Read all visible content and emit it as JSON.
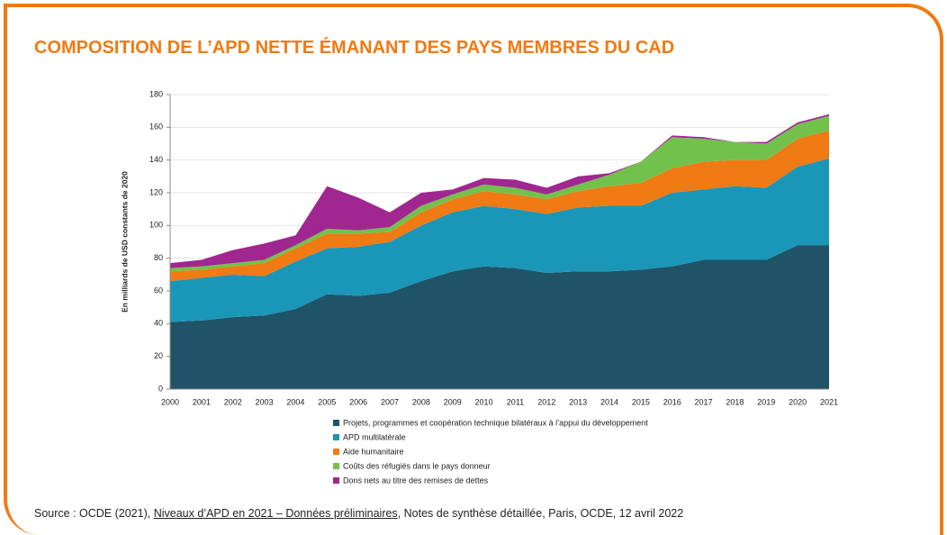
{
  "chart_data": {
    "type": "stacked_area",
    "title": "COMPOSITION DE L’APD NETTE ÉMANANT DES PAYS MEMBRES DU CAD",
    "y_label": "En milliards de USD constants de 2020",
    "categories": [
      "2000",
      "2001",
      "2002",
      "2003",
      "2004",
      "2005",
      "2006",
      "2007",
      "2008",
      "2009",
      "2010",
      "2011",
      "2012",
      "2013",
      "2014",
      "2015",
      "2016",
      "2017",
      "2018",
      "2019",
      "2020",
      "2021"
    ],
    "series": [
      {
        "name": "Projets, programmes et coopération technique bilatéraux à l’appui du développement",
        "color": "#1f5468",
        "values": [
          41,
          42,
          44,
          45,
          49,
          58,
          57,
          59,
          66,
          72,
          75,
          74,
          71,
          72,
          72,
          73,
          75,
          79,
          79,
          79,
          88,
          88
        ]
      },
      {
        "name": "APD multilatérale",
        "color": "#1a96b8",
        "values": [
          25,
          26,
          26,
          24,
          29,
          28,
          30,
          31,
          34,
          36,
          37,
          36,
          36,
          39,
          40,
          39,
          45,
          43,
          45,
          44,
          48,
          53
        ]
      },
      {
        "name": "Aide humanitaire",
        "color": "#f07a13",
        "values": [
          6,
          5,
          5,
          8,
          8,
          9,
          8,
          6,
          8,
          8,
          9,
          9,
          9,
          10,
          12,
          14,
          15,
          17,
          16,
          17,
          17,
          17
        ]
      },
      {
        "name": "Coûts des réfugiés dans le pays donneur",
        "color": "#72c14c",
        "values": [
          2,
          2,
          2,
          2,
          2,
          3,
          2,
          3,
          4,
          3,
          4,
          4,
          3,
          4,
          7,
          13,
          19,
          14,
          11,
          10,
          9,
          9
        ]
      },
      {
        "name": "Dons nets au titre des remises de dettes",
        "color": "#a0278f",
        "values": [
          3,
          4,
          8,
          10,
          6,
          26,
          20,
          9,
          8,
          3,
          4,
          5,
          4,
          5,
          1,
          0,
          1,
          1,
          0,
          1,
          1,
          1
        ]
      }
    ],
    "ylim": [
      0,
      180
    ],
    "yticks": [
      0,
      20,
      40,
      60,
      80,
      100,
      120,
      140,
      160,
      180
    ],
    "source": {
      "prefix": "Source : OCDE (2021), ",
      "link": "Niveaux d’APD en 2021 – Données préliminaires",
      "suffix": ", Notes de synthèse détaillée, Paris, OCDE, 12 avril 2022"
    }
  }
}
